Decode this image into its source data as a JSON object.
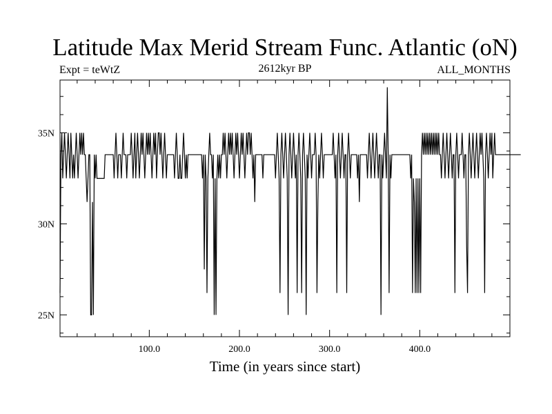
{
  "chart_data": {
    "type": "line",
    "title": "Latitude Max Merid Stream Func. Atlantic (oN)",
    "subtitle_left": "Expt = teWtZ",
    "subtitle_center": "2612kyr BP",
    "subtitle_right": "ALL_MONTHS",
    "xlabel": "Time (in years since start)",
    "ylabel": "",
    "xlim": [
      1,
      500
    ],
    "ylim": [
      23.8,
      37.9
    ],
    "x_ticks": [
      {
        "value": 100,
        "label": "100.0"
      },
      {
        "value": 200,
        "label": "200.0"
      },
      {
        "value": 300,
        "label": "300.0"
      },
      {
        "value": 400,
        "label": "400.0"
      }
    ],
    "y_ticks": [
      {
        "value": 25,
        "label": "25N"
      },
      {
        "value": 30,
        "label": "30N"
      },
      {
        "value": 35,
        "label": "35N"
      }
    ],
    "grid": false,
    "colors": {
      "line": "#000000",
      "axes": "#000000"
    },
    "series": [
      {
        "x_start": 1,
        "x_step": 1,
        "values": [
          26.2,
          33.8,
          35,
          32.5,
          33.8,
          35,
          33.8,
          32.5,
          33.8,
          35,
          33.8,
          32.5,
          35,
          33.8,
          32.5,
          33.8,
          32.5,
          33.8,
          35,
          33.8,
          32.5,
          33.8,
          35,
          33.8,
          35,
          33.8,
          35,
          33.8,
          33.8,
          32.5,
          31.2,
          32.5,
          33.8,
          33.8,
          25,
          25,
          31.2,
          25,
          33.8,
          32.5,
          33.8,
          32.5,
          32.5,
          32.5,
          32.5,
          32.5,
          32.5,
          32.5,
          32.5,
          32.5,
          33.8,
          33.8,
          33.8,
          33.8,
          33.8,
          33.8,
          33.8,
          33.8,
          33.8,
          33.8,
          32.5,
          33.8,
          35,
          33.8,
          32.5,
          33.8,
          33.8,
          33.8,
          32.5,
          33.8,
          35,
          33.8,
          33.8,
          33.8,
          32.5,
          33.8,
          33.8,
          33.8,
          33.8,
          35,
          33.8,
          32.5,
          33.8,
          35,
          32.5,
          33.8,
          35,
          33.8,
          32.5,
          33.8,
          35,
          33.8,
          35,
          33.8,
          32.5,
          33.8,
          35,
          33.8,
          35,
          33.8,
          35,
          33.8,
          32.5,
          33.8,
          35,
          33.8,
          35,
          32.5,
          33.8,
          35,
          35,
          33.8,
          35,
          33.8,
          32.5,
          33.8,
          35,
          33.8,
          32.5,
          33.8,
          33.8,
          33.8,
          33.8,
          33.8,
          33.8,
          33.8,
          33.8,
          32.5,
          33.8,
          35,
          33.8,
          32.5,
          32.5,
          33.8,
          32.5,
          32.5,
          33.8,
          35,
          33.8,
          32.5,
          33.8,
          32.5,
          33.8,
          33.8,
          33.8,
          33.8,
          33.8,
          33.8,
          33.8,
          33.8,
          33.8,
          33.8,
          33.8,
          33.8,
          33.8,
          33.8,
          33.8,
          33.8,
          32.5,
          33.8,
          27.5,
          33.8,
          32.5,
          26.2,
          32.5,
          33.8,
          35,
          33.8,
          33.8,
          32.5,
          33.8,
          25,
          32.5,
          25,
          32.5,
          33.8,
          32.5,
          33.8,
          32.5,
          33.8,
          33.8,
          35,
          33.8,
          35,
          33.8,
          32.5,
          33.8,
          35,
          33.8,
          35,
          33.8,
          35,
          33.8,
          32.5,
          33.8,
          35,
          33.8,
          35,
          33.8,
          32.5,
          33.8,
          35,
          33.8,
          35,
          33.8,
          32.5,
          33.8,
          35,
          33.8,
          35,
          35,
          33.8,
          35,
          33.8,
          32.5,
          33.8,
          31.2,
          33.8,
          33.8,
          33.8,
          33.8,
          33.8,
          33.8,
          33.8,
          33.8,
          32.5,
          33.8,
          33.8,
          33.8,
          33.8,
          33.8,
          33.8,
          33.8,
          33.8,
          33.8,
          33.8,
          33.8,
          33.8,
          33.8,
          32.5,
          33.8,
          35,
          33.8,
          32.5,
          26.2,
          33.8,
          35,
          33.8,
          32.5,
          33.8,
          35,
          33.8,
          32.5,
          25,
          33.8,
          35,
          33.8,
          32.5,
          33.8,
          35,
          33.8,
          32.5,
          33.8,
          26.2,
          33.8,
          35,
          33.8,
          32.5,
          26.2,
          33.8,
          35,
          33.8,
          32.5,
          25,
          33.8,
          32.5,
          33.8,
          35,
          33.8,
          32.5,
          33.8,
          33.8,
          33.8,
          35,
          33.8,
          26.2,
          31.2,
          33.8,
          32.5,
          33.8,
          35,
          33.8,
          32.5,
          33.8,
          33.8,
          33.8,
          33.8,
          33.8,
          33.8,
          33.8,
          33.8,
          33.8,
          33.8,
          35,
          33.8,
          32.5,
          33.8,
          26.2,
          33.8,
          35,
          33.8,
          32.5,
          33.8,
          35,
          33.8,
          32.5,
          33.8,
          33.8,
          26.2,
          33.8,
          35,
          33.8,
          32.5,
          33.8,
          33.8,
          33.8,
          33.8,
          33.8,
          33.8,
          33.8,
          32.5,
          33.8,
          31.2,
          33.8,
          33.8,
          33.8,
          33.8,
          33.8,
          33.8,
          33.8,
          33.8,
          32.5,
          33.8,
          35,
          33.8,
          32.5,
          33.8,
          35,
          33.8,
          32.5,
          33.8,
          35,
          33.8,
          32.5,
          33.8,
          33.8,
          25,
          33.8,
          32.5,
          33.8,
          35,
          33.8,
          32.5,
          37.5,
          33.8,
          26.2,
          33.8,
          32.5,
          33.8,
          33.8,
          33.8,
          33.8,
          33.8,
          33.8,
          33.8,
          33.8,
          33.8,
          33.8,
          33.8,
          33.8,
          33.8,
          33.8,
          33.8,
          33.8,
          33.8,
          33.8,
          33.8,
          33.8,
          33.8,
          32.5,
          33.8,
          26.2,
          32.5,
          31.2,
          26.2,
          32.5,
          26.2,
          32.5,
          26.2,
          32.5,
          26.2,
          33.8,
          35,
          33.8,
          35,
          33.8,
          35,
          33.8,
          35,
          33.8,
          35,
          33.8,
          35,
          33.8,
          35,
          33.8,
          35,
          33.8,
          35,
          33.8,
          35,
          33.8,
          33.8,
          32.5,
          33.8,
          35,
          33.8,
          32.5,
          33.8,
          35,
          33.8,
          32.5,
          33.8,
          35,
          33.8,
          32.5,
          33.8,
          33.8,
          26.2,
          33.8,
          35,
          33.8,
          32.5,
          33.8,
          33.8,
          33.8,
          35,
          33.8,
          32.5,
          33.8,
          33.8,
          28.8,
          26.2,
          33.8,
          35,
          33.8,
          32.5,
          33.8,
          35,
          33.8,
          32.5,
          33.8,
          35,
          33.8,
          32.5,
          33.8,
          35,
          33.8,
          35,
          33.8,
          32.5,
          26.2,
          33.8,
          35,
          33.8,
          32.5,
          33.8,
          35,
          33.8,
          35,
          32.5,
          33.8,
          35,
          33.8,
          33.8,
          33.8,
          33.8,
          33.8,
          33.8,
          33.8,
          33.8,
          33.8,
          33.8,
          33.8,
          33.8,
          33.8,
          33.8,
          33.8,
          33.8,
          33.8,
          33.8,
          33.8,
          33.8,
          33.8,
          33.8,
          33.8,
          33.8,
          33.8,
          33.8,
          33.8,
          33.8,
          33.8
        ]
      }
    ]
  }
}
